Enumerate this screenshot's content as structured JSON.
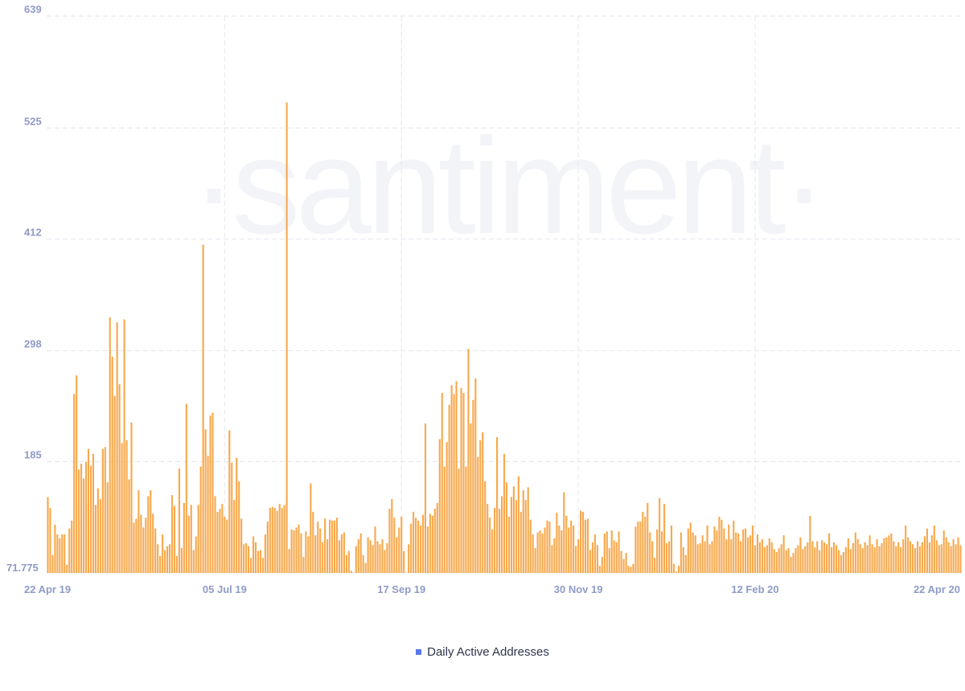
{
  "watermark": "·santiment·",
  "legend": {
    "label": "Daily Active Addresses",
    "color": "#5a77e8"
  },
  "chart_data": {
    "type": "bar",
    "bar_color": "#f7a94e",
    "series": [
      {
        "name": "Daily Active Addresses"
      }
    ],
    "ylim": [
      71.775,
      639
    ],
    "y_ticks": [
      "639",
      "525",
      "412",
      "298",
      "185",
      "71.775"
    ],
    "y_tick_values": [
      639,
      525,
      412,
      298,
      185,
      71.775
    ],
    "x_ticks": [
      "22 Apr 19",
      "05 Jul 19",
      "17 Sep 19",
      "30 Nov 19",
      "12 Feb 20",
      "22 Apr 20"
    ],
    "x_tick_index": [
      0,
      74,
      148,
      222,
      296,
      366
    ],
    "values": [
      149,
      138,
      90,
      121,
      111,
      107,
      111,
      111,
      80,
      117,
      125,
      254,
      273,
      177,
      183,
      168,
      185,
      198,
      181,
      193,
      141,
      158,
      147,
      198,
      200,
      164,
      332,
      292,
      252,
      327,
      264,
      204,
      330,
      207,
      167,
      225,
      123,
      127,
      156,
      131,
      118,
      128,
      150,
      156,
      132,
      117,
      101,
      89,
      111,
      95,
      99,
      101,
      151,
      140,
      89,
      178,
      97,
      143,
      244,
      130,
      141,
      95,
      109,
      141,
      180,
      406,
      218,
      191,
      232,
      235,
      150,
      134,
      137,
      142,
      129,
      126,
      217,
      184,
      146,
      189,
      165,
      127,
      101,
      102,
      99,
      87,
      109,
      103,
      94,
      95,
      87,
      111,
      124,
      138,
      139,
      138,
      135,
      142,
      138,
      141,
      551,
      96,
      116,
      115,
      118,
      121,
      112,
      88,
      114,
      109,
      163,
      134,
      110,
      124,
      117,
      103,
      127,
      106,
      126,
      125,
      125,
      128,
      105,
      111,
      113,
      90,
      94,
      74,
      72,
      99,
      106,
      112,
      90,
      82,
      108,
      105,
      100,
      119,
      104,
      101,
      106,
      95,
      102,
      137,
      147,
      128,
      108,
      118,
      129,
      94,
      72,
      101,
      122,
      134,
      128,
      125,
      120,
      131,
      224,
      119,
      132,
      130,
      137,
      143,
      208,
      255,
      180,
      205,
      243,
      263,
      254,
      267,
      178,
      260,
      255,
      180,
      300,
      224,
      248,
      270,
      190,
      207,
      215,
      165,
      142,
      128,
      116,
      138,
      210,
      137,
      150,
      193,
      164,
      129,
      149,
      160,
      146,
      170,
      134,
      156,
      146,
      159,
      126,
      111,
      97,
      113,
      115,
      112,
      118,
      125,
      124,
      100,
      107,
      133,
      120,
      115,
      154,
      130,
      118,
      125,
      120,
      99,
      106,
      135,
      134,
      126,
      127,
      95,
      103,
      111,
      100,
      79,
      88,
      112,
      114,
      97,
      115,
      105,
      103,
      114,
      94,
      86,
      92,
      79,
      78,
      81,
      119,
      124,
      124,
      134,
      129,
      143,
      113,
      104,
      87,
      116,
      148,
      114,
      142,
      102,
      104,
      120,
      81,
      73,
      79,
      113,
      98,
      90,
      117,
      123,
      113,
      110,
      101,
      102,
      110,
      104,
      120,
      101,
      104,
      119,
      115,
      129,
      126,
      117,
      106,
      121,
      106,
      125,
      113,
      112,
      104,
      116,
      117,
      108,
      110,
      120,
      100,
      111,
      103,
      106,
      98,
      100,
      107,
      103,
      96,
      93,
      97,
      101,
      110,
      95,
      97,
      88,
      92,
      97,
      100,
      108,
      96,
      99,
      103,
      130,
      104,
      98,
      104,
      95,
      105,
      103,
      101,
      112,
      98,
      103,
      100,
      95,
      90,
      93,
      98,
      107,
      96,
      102,
      113,
      106,
      101,
      97,
      103,
      100,
      110,
      101,
      98,
      106,
      99,
      102,
      107,
      108,
      110,
      112,
      104,
      99,
      103,
      98,
      106,
      120,
      108,
      104,
      101,
      97,
      104,
      99,
      103,
      109,
      117,
      103,
      110,
      120,
      105,
      100,
      101,
      115,
      108,
      103,
      99,
      106,
      101,
      108,
      100
    ]
  }
}
